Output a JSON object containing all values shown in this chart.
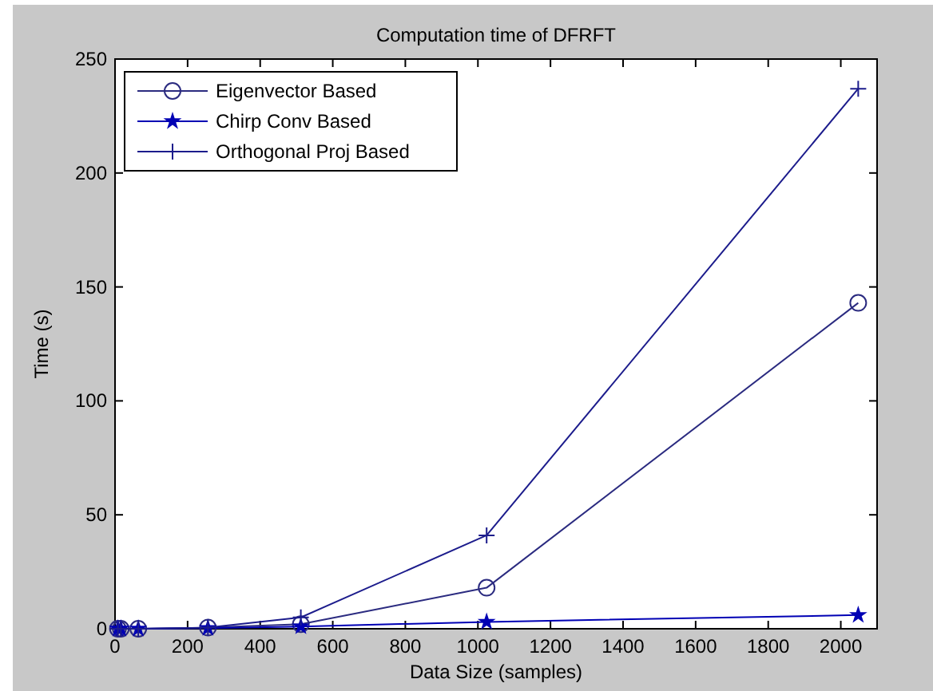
{
  "chart_data": {
    "type": "line",
    "title": "Computation time of DFRFT",
    "xlabel": "Data Size (samples)",
    "ylabel": "Time (s)",
    "x": [
      8,
      16,
      64,
      256,
      512,
      1024,
      2048
    ],
    "series": [
      {
        "name": "Eigenvector Based",
        "color": "#2b2b80",
        "marker": "circle",
        "values": [
          0,
          0,
          0,
          0.5,
          2,
          18,
          143
        ]
      },
      {
        "name": "Chirp Conv Based",
        "color": "#0000b4",
        "marker": "star",
        "values": [
          0,
          0,
          0,
          0.3,
          1,
          3,
          6
        ]
      },
      {
        "name": "Orthogonal Proj Based",
        "color": "#1c1c8c",
        "marker": "cross",
        "values": [
          0,
          0,
          0,
          0.5,
          5,
          41,
          237
        ]
      }
    ],
    "xlim": [
      0,
      2100
    ],
    "xticks": [
      0,
      200,
      400,
      600,
      800,
      1000,
      1200,
      1400,
      1600,
      1800,
      2000
    ],
    "ylim": [
      0,
      250
    ],
    "yticks": [
      0,
      50,
      100,
      150,
      200,
      250
    ],
    "grid": false,
    "legend": "top left",
    "line_style": "solid"
  }
}
